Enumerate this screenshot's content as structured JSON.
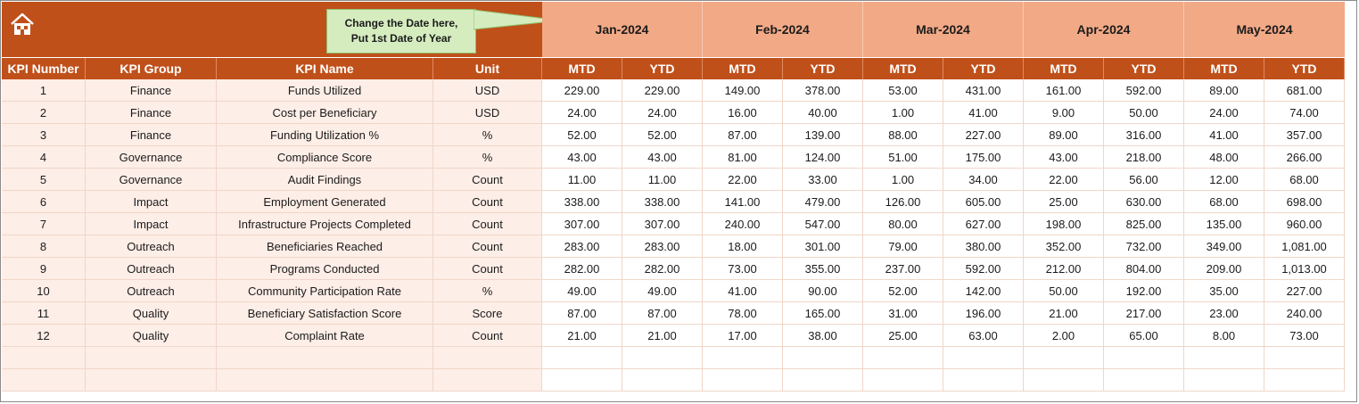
{
  "callout": {
    "line1": "Change the Date here,",
    "line2": "Put 1st Date of Year"
  },
  "months": [
    "Jan-2024",
    "Feb-2024",
    "Mar-2024",
    "Apr-2024",
    "May-2024"
  ],
  "columns": {
    "kpi_number": "KPI Number",
    "kpi_group": "KPI Group",
    "kpi_name": "KPI Name",
    "unit": "Unit",
    "mtd": "MTD",
    "ytd": "YTD"
  },
  "rows": [
    {
      "num": "1",
      "group": "Finance",
      "name": "Funds Utilized",
      "unit": "USD",
      "values": [
        "229.00",
        "229.00",
        "149.00",
        "378.00",
        "53.00",
        "431.00",
        "161.00",
        "592.00",
        "89.00",
        "681.00"
      ]
    },
    {
      "num": "2",
      "group": "Finance",
      "name": "Cost per Beneficiary",
      "unit": "USD",
      "values": [
        "24.00",
        "24.00",
        "16.00",
        "40.00",
        "1.00",
        "41.00",
        "9.00",
        "50.00",
        "24.00",
        "74.00"
      ]
    },
    {
      "num": "3",
      "group": "Finance",
      "name": "Funding Utilization %",
      "unit": "%",
      "values": [
        "52.00",
        "52.00",
        "87.00",
        "139.00",
        "88.00",
        "227.00",
        "89.00",
        "316.00",
        "41.00",
        "357.00"
      ]
    },
    {
      "num": "4",
      "group": "Governance",
      "name": "Compliance Score",
      "unit": "%",
      "values": [
        "43.00",
        "43.00",
        "81.00",
        "124.00",
        "51.00",
        "175.00",
        "43.00",
        "218.00",
        "48.00",
        "266.00"
      ]
    },
    {
      "num": "5",
      "group": "Governance",
      "name": "Audit Findings",
      "unit": "Count",
      "values": [
        "11.00",
        "11.00",
        "22.00",
        "33.00",
        "1.00",
        "34.00",
        "22.00",
        "56.00",
        "12.00",
        "68.00"
      ]
    },
    {
      "num": "6",
      "group": "Impact",
      "name": "Employment Generated",
      "unit": "Count",
      "values": [
        "338.00",
        "338.00",
        "141.00",
        "479.00",
        "126.00",
        "605.00",
        "25.00",
        "630.00",
        "68.00",
        "698.00"
      ]
    },
    {
      "num": "7",
      "group": "Impact",
      "name": "Infrastructure Projects Completed",
      "unit": "Count",
      "values": [
        "307.00",
        "307.00",
        "240.00",
        "547.00",
        "80.00",
        "627.00",
        "198.00",
        "825.00",
        "135.00",
        "960.00"
      ]
    },
    {
      "num": "8",
      "group": "Outreach",
      "name": "Beneficiaries Reached",
      "unit": "Count",
      "values": [
        "283.00",
        "283.00",
        "18.00",
        "301.00",
        "79.00",
        "380.00",
        "352.00",
        "732.00",
        "349.00",
        "1,081.00"
      ]
    },
    {
      "num": "9",
      "group": "Outreach",
      "name": "Programs Conducted",
      "unit": "Count",
      "values": [
        "282.00",
        "282.00",
        "73.00",
        "355.00",
        "237.00",
        "592.00",
        "212.00",
        "804.00",
        "209.00",
        "1,013.00"
      ]
    },
    {
      "num": "10",
      "group": "Outreach",
      "name": "Community Participation Rate",
      "unit": "%",
      "values": [
        "49.00",
        "49.00",
        "41.00",
        "90.00",
        "52.00",
        "142.00",
        "50.00",
        "192.00",
        "35.00",
        "227.00"
      ]
    },
    {
      "num": "11",
      "group": "Quality",
      "name": "Beneficiary Satisfaction Score",
      "unit": "Score",
      "values": [
        "87.00",
        "87.00",
        "78.00",
        "165.00",
        "31.00",
        "196.00",
        "21.00",
        "217.00",
        "23.00",
        "240.00"
      ]
    },
    {
      "num": "12",
      "group": "Quality",
      "name": "Complaint Rate",
      "unit": "Count",
      "values": [
        "21.00",
        "21.00",
        "17.00",
        "38.00",
        "25.00",
        "63.00",
        "2.00",
        "65.00",
        "8.00",
        "73.00"
      ]
    }
  ],
  "empty_rows": 2,
  "icons": {
    "home": "home-icon"
  },
  "colors": {
    "header_dark": "#c0501a",
    "header_month": "#f2a986",
    "info_cell": "#fdeee7",
    "callout": "#d5ecbf"
  }
}
